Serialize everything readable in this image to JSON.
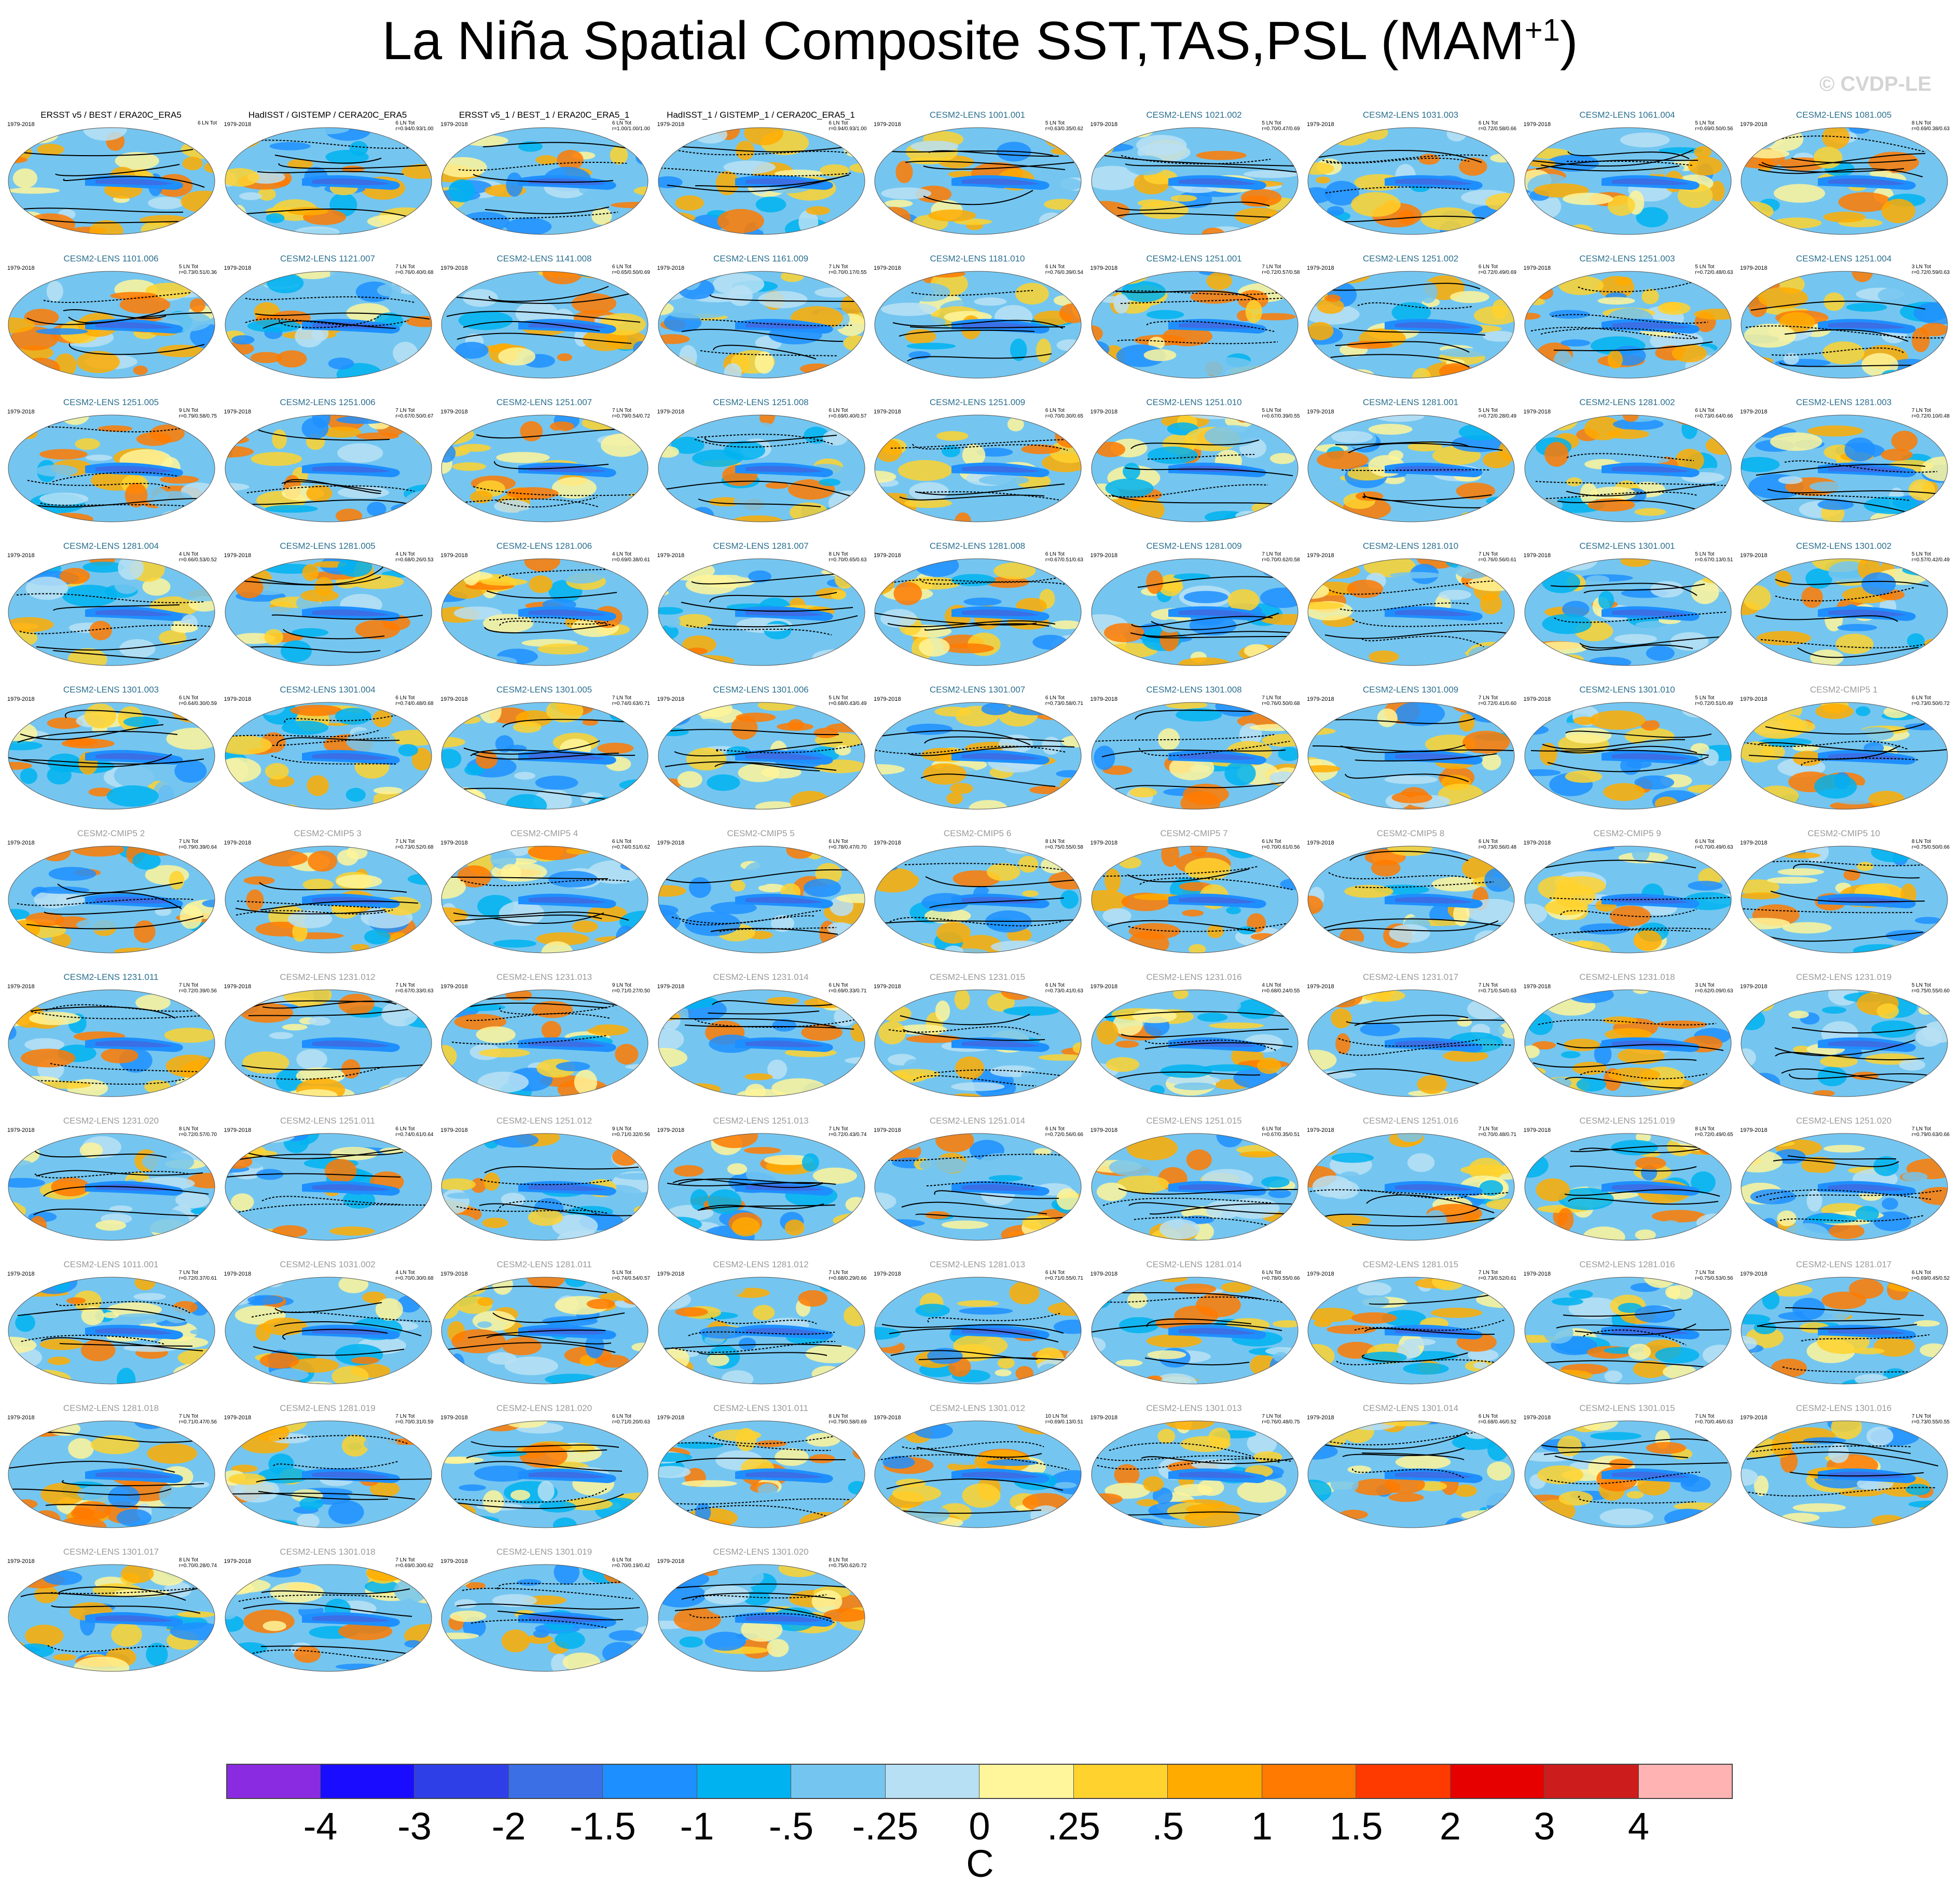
{
  "figure": {
    "title_main": "La Niña Spatial Composite SST,TAS,PSL (MAM",
    "title_sup": "+1",
    "title_end": ")",
    "watermark": "© CVDP-LE"
  },
  "colors": {
    "obs_title": "#000000",
    "lens_title": "#2a6f8e",
    "cmip_title": "#9a9a9a",
    "contour": "#000000"
  },
  "chart_data": {
    "type": "heatmap",
    "description_units": "C",
    "colorbar": {
      "labels": [
        "-4",
        "-3",
        "-2",
        "-1.5",
        "-1",
        "-.5",
        "-.25",
        "0",
        ".25",
        ".5",
        "1",
        "1.5",
        "2",
        "3",
        "4"
      ],
      "colors": [
        "#8a2be2",
        "#1a0dff",
        "#2f3fe8",
        "#3a6fe6",
        "#1e8fff",
        "#00b3f0",
        "#74c6f0",
        "#b8e0f4",
        "#fff59a",
        "#ffd22e",
        "#ffab00",
        "#ff7a00",
        "#ff3a00",
        "#e60000",
        "#cc1c1c",
        "#ffb3b3"
      ],
      "units": "C"
    },
    "panels": [
      {
        "title": "ERSST v5 / BEST / ERA20C_ERA5",
        "years": "1979-2018",
        "stats": "6 LN Tot",
        "stats2": "",
        "kind": "obs"
      },
      {
        "title": "HadISST / GISTEMP / CERA20C_ERA5",
        "years": "1979-2018",
        "stats": "6 LN Tot",
        "stats2": "r=0.94/0.93/1.00",
        "kind": "obs"
      },
      {
        "title": "ERSST v5_1 / BEST_1 / ERA20C_ERA5_1",
        "years": "1979-2018",
        "stats": "6 LN Tot",
        "stats2": "r=1.00/1.00/1.00",
        "kind": "obs"
      },
      {
        "title": "HadISST_1 / GISTEMP_1 / CERA20C_ERA5_1",
        "years": "1979-2018",
        "stats": "6 LN Tot",
        "stats2": "r=0.94/0.93/1.00",
        "kind": "obs"
      },
      {
        "title": "CESM2-LENS 1001.001",
        "years": "1979-2018",
        "stats": "5 LN Tot",
        "stats2": "r=0.63/0.35/0.62",
        "kind": "lens"
      },
      {
        "title": "CESM2-LENS 1021.002",
        "years": "1979-2018",
        "stats": "5 LN Tot",
        "stats2": "r=0.70/0.47/0.69",
        "kind": "lens"
      },
      {
        "title": "CESM2-LENS 1031.003",
        "years": "1979-2018",
        "stats": "6 LN Tot",
        "stats2": "r=0.72/0.58/0.66",
        "kind": "lens"
      },
      {
        "title": "CESM2-LENS 1061.004",
        "years": "1979-2018",
        "stats": "5 LN Tot",
        "stats2": "r=0.69/0.50/0.56",
        "kind": "lens"
      },
      {
        "title": "CESM2-LENS 1081.005",
        "years": "1979-2018",
        "stats": "8 LN Tot",
        "stats2": "r=0.69/0.38/0.63",
        "kind": "lens"
      },
      {
        "title": "CESM2-LENS 1101.006",
        "years": "1979-2018",
        "stats": "5 LN Tot",
        "stats2": "r=0.73/0.51/0.36",
        "kind": "lens"
      },
      {
        "title": "CESM2-LENS 1121.007",
        "years": "1979-2018",
        "stats": "7 LN Tot",
        "stats2": "r=0.76/0.40/0.68",
        "kind": "lens"
      },
      {
        "title": "CESM2-LENS 1141.008",
        "years": "1979-2018",
        "stats": "6 LN Tot",
        "stats2": "r=0.65/0.50/0.69",
        "kind": "lens"
      },
      {
        "title": "CESM2-LENS 1161.009",
        "years": "1979-2018",
        "stats": "7 LN Tot",
        "stats2": "r=0.70/0.17/0.55",
        "kind": "lens"
      },
      {
        "title": "CESM2-LENS 1181.010",
        "years": "1979-2018",
        "stats": "6 LN Tot",
        "stats2": "r=0.76/0.39/0.54",
        "kind": "lens"
      },
      {
        "title": "CESM2-LENS 1251.001",
        "years": "1979-2018",
        "stats": "7 LN Tot",
        "stats2": "r=0.72/0.57/0.58",
        "kind": "lens"
      },
      {
        "title": "CESM2-LENS 1251.002",
        "years": "1979-2018",
        "stats": "6 LN Tot",
        "stats2": "r=0.72/0.49/0.69",
        "kind": "lens"
      },
      {
        "title": "CESM2-LENS 1251.003",
        "years": "1979-2018",
        "stats": "5 LN Tot",
        "stats2": "r=0.72/0.48/0.63",
        "kind": "lens"
      },
      {
        "title": "CESM2-LENS 1251.004",
        "years": "1979-2018",
        "stats": "3 LN Tot",
        "stats2": "r=0.72/0.59/0.63",
        "kind": "lens"
      },
      {
        "title": "CESM2-LENS 1251.005",
        "years": "1979-2018",
        "stats": "9 LN Tot",
        "stats2": "r=0.79/0.58/0.75",
        "kind": "lens"
      },
      {
        "title": "CESM2-LENS 1251.006",
        "years": "1979-2018",
        "stats": "7 LN Tot",
        "stats2": "r=0.67/0.50/0.67",
        "kind": "lens"
      },
      {
        "title": "CESM2-LENS 1251.007",
        "years": "1979-2018",
        "stats": "7 LN Tot",
        "stats2": "r=0.79/0.54/0.72",
        "kind": "lens"
      },
      {
        "title": "CESM2-LENS 1251.008",
        "years": "1979-2018",
        "stats": "6 LN Tot",
        "stats2": "r=0.69/0.40/0.57",
        "kind": "lens"
      },
      {
        "title": "CESM2-LENS 1251.009",
        "years": "1979-2018",
        "stats": "6 LN Tot",
        "stats2": "r=0.70/0.30/0.65",
        "kind": "lens"
      },
      {
        "title": "CESM2-LENS 1251.010",
        "years": "1979-2018",
        "stats": "5 LN Tot",
        "stats2": "r=0.67/0.39/0.55",
        "kind": "lens"
      },
      {
        "title": "CESM2-LENS 1281.001",
        "years": "1979-2018",
        "stats": "5 LN Tot",
        "stats2": "r=0.72/0.28/0.49",
        "kind": "lens"
      },
      {
        "title": "CESM2-LENS 1281.002",
        "years": "1979-2018",
        "stats": "6 LN Tot",
        "stats2": "r=0.73/0.64/0.66",
        "kind": "lens"
      },
      {
        "title": "CESM2-LENS 1281.003",
        "years": "1979-2018",
        "stats": "7 LN Tot",
        "stats2": "r=0.72/0.10/0.48",
        "kind": "lens"
      },
      {
        "title": "CESM2-LENS 1281.004",
        "years": "1979-2018",
        "stats": "4 LN Tot",
        "stats2": "r=0.66/0.53/0.52",
        "kind": "lens"
      },
      {
        "title": "CESM2-LENS 1281.005",
        "years": "1979-2018",
        "stats": "4 LN Tot",
        "stats2": "r=0.68/0.26/0.53",
        "kind": "lens"
      },
      {
        "title": "CESM2-LENS 1281.006",
        "years": "1979-2018",
        "stats": "4 LN Tot",
        "stats2": "r=0.69/0.38/0.61",
        "kind": "lens"
      },
      {
        "title": "CESM2-LENS 1281.007",
        "years": "1979-2018",
        "stats": "8 LN Tot",
        "stats2": "r=0.70/0.65/0.63",
        "kind": "lens"
      },
      {
        "title": "CESM2-LENS 1281.008",
        "years": "1979-2018",
        "stats": "6 LN Tot",
        "stats2": "r=0.67/0.51/0.63",
        "kind": "lens"
      },
      {
        "title": "CESM2-LENS 1281.009",
        "years": "1979-2018",
        "stats": "7 LN Tot",
        "stats2": "r=0.70/0.62/0.58",
        "kind": "lens"
      },
      {
        "title": "CESM2-LENS 1281.010",
        "years": "1979-2018",
        "stats": "7 LN Tot",
        "stats2": "r=0.76/0.56/0.61",
        "kind": "lens"
      },
      {
        "title": "CESM2-LENS 1301.001",
        "years": "1979-2018",
        "stats": "5 LN Tot",
        "stats2": "r=0.67/0.13/0.51",
        "kind": "lens"
      },
      {
        "title": "CESM2-LENS 1301.002",
        "years": "1979-2018",
        "stats": "5 LN Tot",
        "stats2": "r=0.57/0.42/0.49",
        "kind": "lens"
      },
      {
        "title": "CESM2-LENS 1301.003",
        "years": "1979-2018",
        "stats": "6 LN Tot",
        "stats2": "r=0.64/0.30/0.59",
        "kind": "lens"
      },
      {
        "title": "CESM2-LENS 1301.004",
        "years": "1979-2018",
        "stats": "6 LN Tot",
        "stats2": "r=0.74/0.48/0.68",
        "kind": "lens"
      },
      {
        "title": "CESM2-LENS 1301.005",
        "years": "1979-2018",
        "stats": "7 LN Tot",
        "stats2": "r=0.74/0.63/0.71",
        "kind": "lens"
      },
      {
        "title": "CESM2-LENS 1301.006",
        "years": "1979-2018",
        "stats": "5 LN Tot",
        "stats2": "r=0.68/0.43/0.49",
        "kind": "lens"
      },
      {
        "title": "CESM2-LENS 1301.007",
        "years": "1979-2018",
        "stats": "6 LN Tot",
        "stats2": "r=0.73/0.58/0.71",
        "kind": "lens"
      },
      {
        "title": "CESM2-LENS 1301.008",
        "years": "1979-2018",
        "stats": "7 LN Tot",
        "stats2": "r=0.76/0.50/0.68",
        "kind": "lens"
      },
      {
        "title": "CESM2-LENS 1301.009",
        "years": "1979-2018",
        "stats": "7 LN Tot",
        "stats2": "r=0.72/0.41/0.60",
        "kind": "lens"
      },
      {
        "title": "CESM2-LENS 1301.010",
        "years": "1979-2018",
        "stats": "5 LN Tot",
        "stats2": "r=0.72/0.51/0.49",
        "kind": "lens"
      },
      {
        "title": "CESM2-CMIP5 1",
        "years": "1979-2018",
        "stats": "6 LN Tot",
        "stats2": "r=0.73/0.50/0.72",
        "kind": "cmip"
      },
      {
        "title": "CESM2-CMIP5 2",
        "years": "1979-2018",
        "stats": "7 LN Tot",
        "stats2": "r=0.79/0.39/0.64",
        "kind": "cmip"
      },
      {
        "title": "CESM2-CMIP5 3",
        "years": "1979-2018",
        "stats": "7 LN Tot",
        "stats2": "r=0.73/0.52/0.68",
        "kind": "cmip"
      },
      {
        "title": "CESM2-CMIP5 4",
        "years": "1979-2018",
        "stats": "6 LN Tot",
        "stats2": "r=0.74/0.51/0.62",
        "kind": "cmip"
      },
      {
        "title": "CESM2-CMIP5 5",
        "years": "1979-2018",
        "stats": "6 LN Tot",
        "stats2": "r=0.78/0.47/0.70",
        "kind": "cmip"
      },
      {
        "title": "CESM2-CMIP5 6",
        "years": "1979-2018",
        "stats": "8 LN Tot",
        "stats2": "r=0.75/0.55/0.58",
        "kind": "cmip"
      },
      {
        "title": "CESM2-CMIP5 7",
        "years": "1979-2018",
        "stats": "6 LN Tot",
        "stats2": "r=0.70/0.61/0.56",
        "kind": "cmip"
      },
      {
        "title": "CESM2-CMIP5 8",
        "years": "1979-2018",
        "stats": "6 LN Tot",
        "stats2": "r=0.73/0.56/0.48",
        "kind": "cmip"
      },
      {
        "title": "CESM2-CMIP5 9",
        "years": "1979-2018",
        "stats": "6 LN Tot",
        "stats2": "r=0.70/0.49/0.63",
        "kind": "cmip"
      },
      {
        "title": "CESM2-CMIP5 10",
        "years": "1979-2018",
        "stats": "8 LN Tot",
        "stats2": "r=0.75/0.50/0.66",
        "kind": "cmip"
      },
      {
        "title": "CESM2-LENS 1231.011",
        "years": "1979-2018",
        "stats": "7 LN Tot",
        "stats2": "r=0.72/0.39/0.56",
        "kind": "lens"
      },
      {
        "title": "CESM2-LENS 1231.012",
        "years": "1979-2018",
        "stats": "7 LN Tot",
        "stats2": "r=0.67/0.33/0.63",
        "kind": "cmip"
      },
      {
        "title": "CESM2-LENS 1231.013",
        "years": "1979-2018",
        "stats": "9 LN Tot",
        "stats2": "r=0.71/0.27/0.50",
        "kind": "cmip"
      },
      {
        "title": "CESM2-LENS 1231.014",
        "years": "1979-2018",
        "stats": "6 LN Tot",
        "stats2": "r=0.69/0.33/0.71",
        "kind": "cmip"
      },
      {
        "title": "CESM2-LENS 1231.015",
        "years": "1979-2018",
        "stats": "6 LN Tot",
        "stats2": "r=0.73/0.41/0.63",
        "kind": "cmip"
      },
      {
        "title": "CESM2-LENS 1231.016",
        "years": "1979-2018",
        "stats": "4 LN Tot",
        "stats2": "r=0.68/0.24/0.55",
        "kind": "cmip"
      },
      {
        "title": "CESM2-LENS 1231.017",
        "years": "1979-2018",
        "stats": "7 LN Tot",
        "stats2": "r=0.71/0.54/0.63",
        "kind": "cmip"
      },
      {
        "title": "CESM2-LENS 1231.018",
        "years": "1979-2018",
        "stats": "3 LN Tot",
        "stats2": "r=0.62/0.09/0.63",
        "kind": "cmip"
      },
      {
        "title": "CESM2-LENS 1231.019",
        "years": "1979-2018",
        "stats": "5 LN Tot",
        "stats2": "r=0.75/0.55/0.60",
        "kind": "cmip"
      },
      {
        "title": "CESM2-LENS 1231.020",
        "years": "1979-2018",
        "stats": "8 LN Tot",
        "stats2": "r=0.72/0.57/0.70",
        "kind": "cmip"
      },
      {
        "title": "CESM2-LENS 1251.011",
        "years": "1979-2018",
        "stats": "6 LN Tot",
        "stats2": "r=0.74/0.61/0.64",
        "kind": "cmip"
      },
      {
        "title": "CESM2-LENS 1251.012",
        "years": "1979-2018",
        "stats": "9 LN Tot",
        "stats2": "r=0.71/0.32/0.56",
        "kind": "cmip"
      },
      {
        "title": "CESM2-LENS 1251.013",
        "years": "1979-2018",
        "stats": "7 LN Tot",
        "stats2": "r=0.72/0.43/0.74",
        "kind": "cmip"
      },
      {
        "title": "CESM2-LENS 1251.014",
        "years": "1979-2018",
        "stats": "6 LN Tot",
        "stats2": "r=0.72/0.56/0.66",
        "kind": "cmip"
      },
      {
        "title": "CESM2-LENS 1251.015",
        "years": "1979-2018",
        "stats": "6 LN Tot",
        "stats2": "r=0.67/0.35/0.51",
        "kind": "cmip"
      },
      {
        "title": "CESM2-LENS 1251.016",
        "years": "1979-2018",
        "stats": "7 LN Tot",
        "stats2": "r=0.70/0.48/0.71",
        "kind": "cmip"
      },
      {
        "title": "CESM2-LENS 1251.019",
        "years": "1979-2018",
        "stats": "8 LN Tot",
        "stats2": "r=0.72/0.49/0.65",
        "kind": "cmip"
      },
      {
        "title": "CESM2-LENS 1251.020",
        "years": "1979-2018",
        "stats": "7 LN Tot",
        "stats2": "r=0.79/0.63/0.66",
        "kind": "cmip"
      },
      {
        "title": "CESM2-LENS 1011.001",
        "years": "1979-2018",
        "stats": "7 LN Tot",
        "stats2": "r=0.72/0.37/0.61",
        "kind": "cmip"
      },
      {
        "title": "CESM2-LENS 1031.002",
        "years": "1979-2018",
        "stats": "4 LN Tot",
        "stats2": "r=0.70/0.30/0.68",
        "kind": "cmip"
      },
      {
        "title": "CESM2-LENS 1281.011",
        "years": "1979-2018",
        "stats": "5 LN Tot",
        "stats2": "r=0.74/0.54/0.57",
        "kind": "cmip"
      },
      {
        "title": "CESM2-LENS 1281.012",
        "years": "1979-2018",
        "stats": "7 LN Tot",
        "stats2": "r=0.68/0.29/0.66",
        "kind": "cmip"
      },
      {
        "title": "CESM2-LENS 1281.013",
        "years": "1979-2018",
        "stats": "6 LN Tot",
        "stats2": "r=0.71/0.55/0.71",
        "kind": "cmip"
      },
      {
        "title": "CESM2-LENS 1281.014",
        "years": "1979-2018",
        "stats": "6 LN Tot",
        "stats2": "r=0.78/0.55/0.66",
        "kind": "cmip"
      },
      {
        "title": "CESM2-LENS 1281.015",
        "years": "1979-2018",
        "stats": "7 LN Tot",
        "stats2": "r=0.73/0.52/0.61",
        "kind": "cmip"
      },
      {
        "title": "CESM2-LENS 1281.016",
        "years": "1979-2018",
        "stats": "7 LN Tot",
        "stats2": "r=0.75/0.53/0.56",
        "kind": "cmip"
      },
      {
        "title": "CESM2-LENS 1281.017",
        "years": "1979-2018",
        "stats": "6 LN Tot",
        "stats2": "r=0.69/0.45/0.52",
        "kind": "cmip"
      },
      {
        "title": "CESM2-LENS 1281.018",
        "years": "1979-2018",
        "stats": "7 LN Tot",
        "stats2": "r=0.71/0.47/0.56",
        "kind": "cmip"
      },
      {
        "title": "CESM2-LENS 1281.019",
        "years": "1979-2018",
        "stats": "7 LN Tot",
        "stats2": "r=0.70/0.31/0.59",
        "kind": "cmip"
      },
      {
        "title": "CESM2-LENS 1281.020",
        "years": "1979-2018",
        "stats": "6 LN Tot",
        "stats2": "r=0.71/0.20/0.63",
        "kind": "cmip"
      },
      {
        "title": "CESM2-LENS 1301.011",
        "years": "1979-2018",
        "stats": "8 LN Tot",
        "stats2": "r=0.79/0.58/0.69",
        "kind": "cmip"
      },
      {
        "title": "CESM2-LENS 1301.012",
        "years": "1979-2018",
        "stats": "10 LN Tot",
        "stats2": "r=0.69/0.13/0.51",
        "kind": "cmip"
      },
      {
        "title": "CESM2-LENS 1301.013",
        "years": "1979-2018",
        "stats": "7 LN Tot",
        "stats2": "r=0.76/0.48/0.75",
        "kind": "cmip"
      },
      {
        "title": "CESM2-LENS 1301.014",
        "years": "1979-2018",
        "stats": "6 LN Tot",
        "stats2": "r=0.68/0.46/0.52",
        "kind": "cmip"
      },
      {
        "title": "CESM2-LENS 1301.015",
        "years": "1979-2018",
        "stats": "7 LN Tot",
        "stats2": "r=0.70/0.46/0.63",
        "kind": "cmip"
      },
      {
        "title": "CESM2-LENS 1301.016",
        "years": "1979-2018",
        "stats": "7 LN Tot",
        "stats2": "r=0.73/0.55/0.55",
        "kind": "cmip"
      },
      {
        "title": "CESM2-LENS 1301.017",
        "years": "1979-2018",
        "stats": "8 LN Tot",
        "stats2": "r=0.70/0.28/0.74",
        "kind": "cmip"
      },
      {
        "title": "CESM2-LENS 1301.018",
        "years": "1979-2018",
        "stats": "7 LN Tot",
        "stats2": "r=0.69/0.30/0.62",
        "kind": "cmip"
      },
      {
        "title": "CESM2-LENS 1301.019",
        "years": "1979-2018",
        "stats": "6 LN Tot",
        "stats2": "r=0.70/0.19/0.42",
        "kind": "cmip"
      },
      {
        "title": "CESM2-LENS 1301.020",
        "years": "1979-2018",
        "stats": "8 LN Tot",
        "stats2": "r=0.75/0.62/0.72",
        "kind": "cmip"
      }
    ]
  }
}
